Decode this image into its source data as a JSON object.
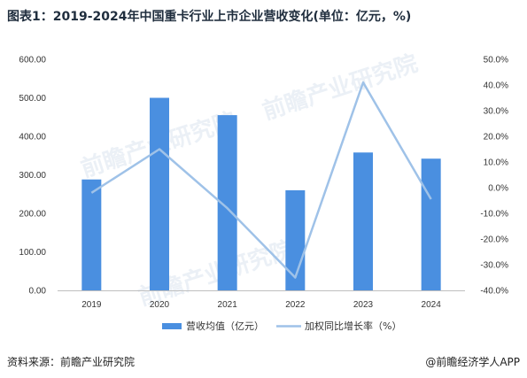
{
  "title": "图表1：2019-2024年中国重卡行业上市企业营收变化(单位：亿元，%)",
  "source": "资料来源：前瞻产业研究院",
  "brand": "@前瞻经济学人APP",
  "watermark": "前瞻产业研究院",
  "colors": {
    "bar": "#4a8fe0",
    "line": "#9fc2e8"
  },
  "chart_data": {
    "type": "bar",
    "categories": [
      "2019",
      "2020",
      "2021",
      "2022",
      "2023",
      "2024"
    ],
    "series": [
      {
        "name": "营收均值（亿元）",
        "type": "bar",
        "axis": "left",
        "values": [
          288,
          500,
          455,
          260,
          358,
          342
        ]
      },
      {
        "name": "加权同比增长率（%）",
        "type": "line",
        "axis": "right",
        "values": [
          -2.0,
          15.0,
          -8.0,
          -35.0,
          41.0,
          -4.5
        ]
      }
    ],
    "y_left": {
      "min": 0,
      "max": 600,
      "step": 100,
      "tick_format": "0.00"
    },
    "y_right": {
      "min": -40,
      "max": 50,
      "step": 10,
      "tick_format": "0.0%"
    },
    "legend": "bottom",
    "grid": false
  }
}
